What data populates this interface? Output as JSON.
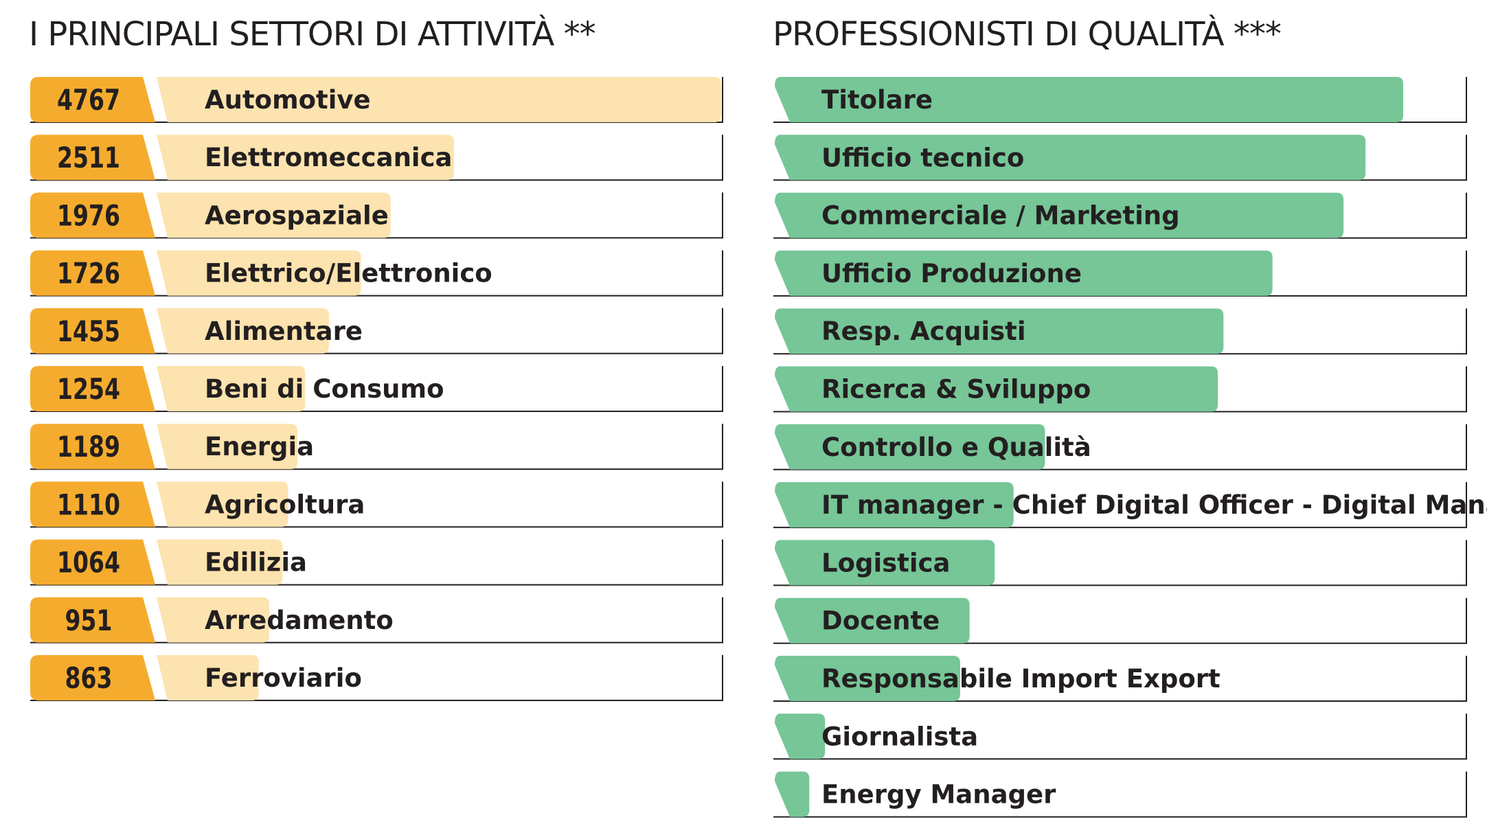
{
  "chart_data": [
    {
      "type": "bar",
      "title": "I PRINCIPALI SETTORI DI ATTIVITÀ **",
      "categories": [
        "Automotive",
        "Elettromeccanica",
        "Aerospaziale",
        "Elettrico/Elettronico",
        "Alimentare",
        "Beni di Consumo",
        "Energia",
        "Agricoltura",
        "Edilizia",
        "Arredamento",
        "Ferroviario"
      ],
      "values": [
        4767,
        2511,
        1976,
        1726,
        1455,
        1254,
        1189,
        1110,
        1064,
        951,
        863
      ],
      "labels": [
        "4767",
        "2511",
        "1976",
        "1726",
        "1455",
        "1254",
        "1189",
        "1110",
        "1064",
        "951",
        "863"
      ],
      "orientation": "horizontal",
      "grid": false,
      "legend": "none",
      "colors": {
        "value_tab": "#f5ac2e",
        "bar": "#fde3af",
        "rule": "#231f20"
      }
    },
    {
      "type": "bar",
      "title": "PROFESSIONISTI DI QUALITÀ ***",
      "categories": [
        "Titolare",
        "Ufficio tecnico",
        "Commerciale / Marketing",
        "Ufficio Produzione",
        "Resp. Acquisti",
        "Ricerca & Sviluppo",
        "Controllo e Qualità",
        "IT manager - Chief Digital Officer - Digital Manager",
        "Logistica",
        "Docente",
        "Responsabile Import Export",
        "Giornalista",
        "Energy Manager"
      ],
      "values": [
        100,
        94,
        90.5,
        79.2,
        71.4,
        70.5,
        43,
        38,
        35,
        31,
        29.5,
        8,
        5.5
      ],
      "orientation": "horizontal",
      "grid": false,
      "legend": "none",
      "colors": {
        "bar": "#76c697",
        "rule": "#231f20"
      }
    }
  ]
}
